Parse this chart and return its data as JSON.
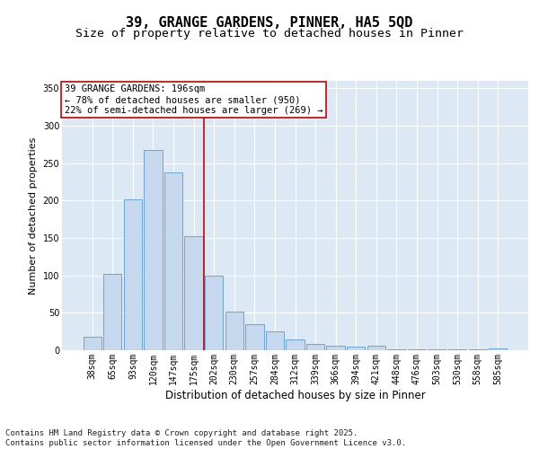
{
  "title1": "39, GRANGE GARDENS, PINNER, HA5 5QD",
  "title2": "Size of property relative to detached houses in Pinner",
  "xlabel": "Distribution of detached houses by size in Pinner",
  "ylabel": "Number of detached properties",
  "categories": [
    "38sqm",
    "65sqm",
    "93sqm",
    "120sqm",
    "147sqm",
    "175sqm",
    "202sqm",
    "230sqm",
    "257sqm",
    "284sqm",
    "312sqm",
    "339sqm",
    "366sqm",
    "394sqm",
    "421sqm",
    "448sqm",
    "476sqm",
    "503sqm",
    "530sqm",
    "558sqm",
    "585sqm"
  ],
  "values": [
    18,
    102,
    202,
    268,
    238,
    152,
    100,
    52,
    35,
    25,
    15,
    9,
    6,
    5,
    6,
    1,
    1,
    1,
    1,
    1,
    2
  ],
  "bar_color": "#c5d8ed",
  "bar_edgecolor": "#5b9bd5",
  "red_line_index": 6,
  "annotation_text": "39 GRANGE GARDENS: 196sqm\n← 78% of detached houses are smaller (950)\n22% of semi-detached houses are larger (269) →",
  "annotation_box_color": "#ffffff",
  "annotation_box_edgecolor": "#cc0000",
  "ylim": [
    0,
    360
  ],
  "yticks": [
    0,
    50,
    100,
    150,
    200,
    250,
    300,
    350
  ],
  "plot_bg_color": "#dce9f5",
  "fig_bg_color": "#ffffff",
  "footer_text": "Contains HM Land Registry data © Crown copyright and database right 2025.\nContains public sector information licensed under the Open Government Licence v3.0.",
  "title1_fontsize": 11,
  "title2_fontsize": 9.5,
  "xlabel_fontsize": 8.5,
  "ylabel_fontsize": 8,
  "tick_fontsize": 7,
  "annotation_fontsize": 7.5,
  "footer_fontsize": 6.5
}
